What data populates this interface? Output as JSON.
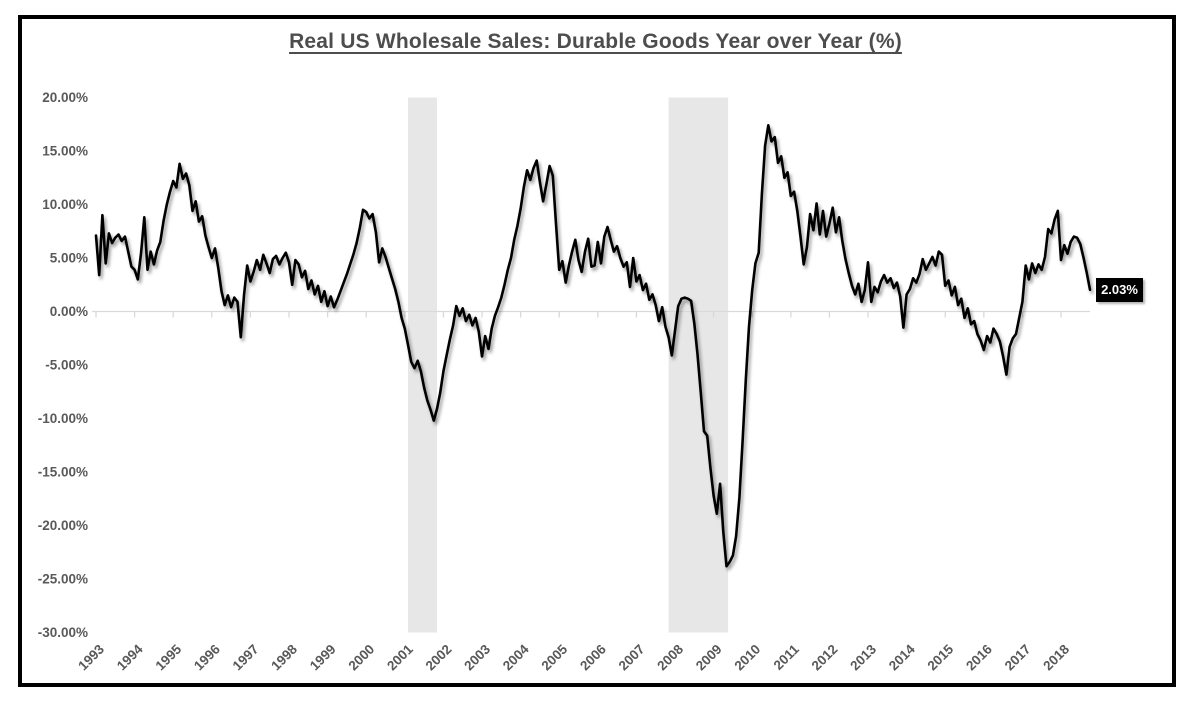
{
  "chart_data": {
    "type": "line",
    "title": "Real US Wholesale Sales: Durable Goods Year over Year (%)",
    "xlabel": "",
    "ylabel": "",
    "start_year": 1993,
    "frequency": "monthly",
    "ylim": [
      -30,
      20
    ],
    "grid": "zero-axis-only",
    "legend_position": "none",
    "y_tick_labels": [
      "20.00%",
      "15.00%",
      "10.00%",
      "5.00%",
      "0.00%",
      "-5.00%",
      "-10.00%",
      "-15.00%",
      "-20.00%",
      "-25.00%",
      "-30.00%"
    ],
    "y_tick_values": [
      20,
      15,
      10,
      5,
      0,
      -5,
      -10,
      -15,
      -20,
      -25,
      -30
    ],
    "x_tick_labels": [
      "1993",
      "1994",
      "1995",
      "1996",
      "1997",
      "1998",
      "1999",
      "2000",
      "2001",
      "2002",
      "2003",
      "2004",
      "2005",
      "2006",
      "2007",
      "2008",
      "2009",
      "2010",
      "2011",
      "2012",
      "2013",
      "2014",
      "2015",
      "2016",
      "2017",
      "2018"
    ],
    "recession_bands": [
      [
        97,
        106
      ],
      [
        178,
        196.5
      ]
    ],
    "last_point_label": "2.03%",
    "colors": {
      "line": "#000000",
      "band": "#e7e7e7",
      "axis": "#d9d9d9",
      "text": "#595959",
      "title_text": "#4d4d4d",
      "callout_bg": "#000000",
      "callout_text": "#ffffff"
    },
    "series": [
      {
        "name": "Real US Wholesale Sales: Durable Goods YoY (%)",
        "values": [
          7.1,
          3.4,
          9.0,
          4.5,
          7.3,
          6.4,
          6.9,
          7.2,
          6.6,
          7.0,
          5.6,
          4.2,
          3.9,
          3.0,
          5.4,
          8.8,
          3.9,
          5.6,
          4.4,
          5.7,
          6.5,
          8.5,
          10.0,
          11.2,
          12.2,
          11.6,
          13.8,
          12.4,
          12.9,
          11.8,
          9.4,
          10.3,
          8.4,
          8.9,
          7.1,
          6.0,
          5.0,
          5.9,
          4.1,
          1.9,
          0.6,
          1.5,
          0.4,
          1.3,
          0.9,
          -2.4,
          1.5,
          4.3,
          2.8,
          3.7,
          4.8,
          3.9,
          5.3,
          4.5,
          3.6,
          4.9,
          5.2,
          4.4,
          5.0,
          5.5,
          4.6,
          2.5,
          4.8,
          4.4,
          3.2,
          3.8,
          2.1,
          2.9,
          1.6,
          2.4,
          0.9,
          1.9,
          0.5,
          1.4,
          0.4,
          1.1,
          1.9,
          2.7,
          3.5,
          4.4,
          5.3,
          6.4,
          7.8,
          9.5,
          9.3,
          8.7,
          9.1,
          7.4,
          4.6,
          5.9,
          5.1,
          4.1,
          3.1,
          2.1,
          0.9,
          -0.6,
          -1.6,
          -3.1,
          -4.7,
          -5.3,
          -4.6,
          -5.6,
          -7.1,
          -8.3,
          -9.2,
          -10.2,
          -9.1,
          -7.6,
          -5.6,
          -4.1,
          -2.6,
          -1.3,
          0.5,
          -0.4,
          0.3,
          -0.9,
          -0.3,
          -1.3,
          -0.6,
          -1.9,
          -4.2,
          -2.3,
          -3.5,
          -1.6,
          -0.4,
          0.4,
          1.3,
          2.5,
          3.9,
          5.0,
          6.7,
          8.0,
          9.6,
          11.6,
          13.2,
          12.3,
          13.4,
          14.1,
          12.1,
          10.3,
          11.9,
          13.6,
          12.7,
          8.2,
          3.9,
          4.7,
          2.7,
          4.3,
          5.6,
          6.7,
          4.8,
          3.7,
          5.6,
          6.8,
          4.2,
          4.3,
          6.5,
          4.5,
          7.0,
          7.9,
          6.7,
          5.6,
          6.1,
          5.0,
          4.2,
          4.6,
          2.3,
          5.0,
          2.8,
          3.4,
          2.0,
          2.6,
          1.1,
          1.6,
          0.6,
          -0.9,
          0.4,
          -1.4,
          -2.4,
          -4.1,
          -1.8,
          0.5,
          1.2,
          1.3,
          1.2,
          1.0,
          -1.1,
          -4.0,
          -7.6,
          -11.2,
          -11.6,
          -14.6,
          -17.2,
          -18.9,
          -16.1,
          -20.6,
          -23.8,
          -23.4,
          -22.8,
          -21.0,
          -17.4,
          -12.1,
          -6.4,
          -1.4,
          2.0,
          4.5,
          5.5,
          11.0,
          15.5,
          17.4,
          15.9,
          16.3,
          13.9,
          14.5,
          12.5,
          13.0,
          10.8,
          11.2,
          9.4,
          7.0,
          4.4,
          6.0,
          9.1,
          7.6,
          10.1,
          7.2,
          9.4,
          7.0,
          8.2,
          9.7,
          7.4,
          8.8,
          6.6,
          4.9,
          3.6,
          2.4,
          1.6,
          2.6,
          0.9,
          2.0,
          4.6,
          0.9,
          2.3,
          1.8,
          2.8,
          3.4,
          2.7,
          3.1,
          2.2,
          2.7,
          1.4,
          -1.5,
          1.6,
          2.1,
          3.1,
          2.7,
          3.5,
          4.9,
          3.9,
          4.5,
          5.1,
          4.3,
          5.6,
          5.3,
          2.4,
          2.9,
          1.5,
          2.3,
          0.6,
          1.2,
          -0.6,
          0.3,
          -1.2,
          -0.9,
          -2.1,
          -2.7,
          -3.6,
          -2.3,
          -2.9,
          -1.6,
          -2.1,
          -2.8,
          -4.2,
          -5.9,
          -3.3,
          -2.5,
          -2.1,
          -0.6,
          0.9,
          4.3,
          3.0,
          4.5,
          3.6,
          4.4,
          3.9,
          5.1,
          7.7,
          7.3,
          8.6,
          9.4,
          4.8,
          6.2,
          5.4,
          6.5,
          7.0,
          6.9,
          6.3,
          5.0,
          3.6,
          2.03
        ]
      }
    ]
  }
}
